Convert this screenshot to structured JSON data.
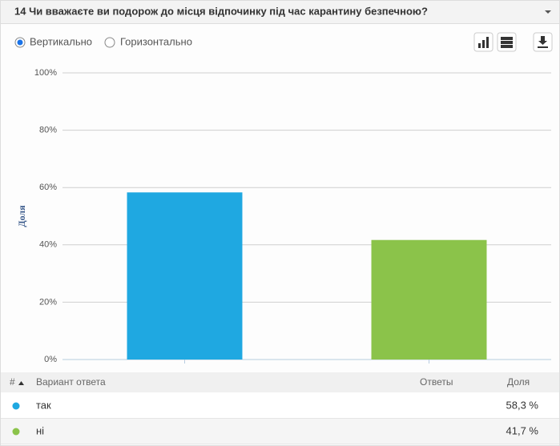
{
  "header": {
    "title": "14 Чи вважаєте ви подорож до місця відпочинку під час карантину безпечною?"
  },
  "options": {
    "vertical": "Вертикально",
    "horizontal": "Горизонтально"
  },
  "chart_data": {
    "type": "bar",
    "ylabel": "Доля",
    "categories": [
      null,
      null
    ],
    "values": [
      58.3,
      41.7
    ],
    "colors": [
      "#1fa8e1",
      "#8bc34a"
    ],
    "ylim": [
      0,
      100
    ],
    "yticks": [
      {
        "value": 0,
        "label": "0%"
      },
      {
        "value": 20,
        "label": "20%"
      },
      {
        "value": 40,
        "label": "40%"
      },
      {
        "value": 60,
        "label": "60%"
      },
      {
        "value": 80,
        "label": "80%"
      },
      {
        "value": 100,
        "label": "100%"
      }
    ],
    "grid": true
  },
  "table": {
    "columns": [
      "#",
      "Вариант ответа",
      "Ответы",
      "Доля"
    ],
    "rows": [
      {
        "label": "так",
        "share": "58,3 %"
      },
      {
        "label": "ні",
        "share": "41,7 %"
      }
    ]
  }
}
